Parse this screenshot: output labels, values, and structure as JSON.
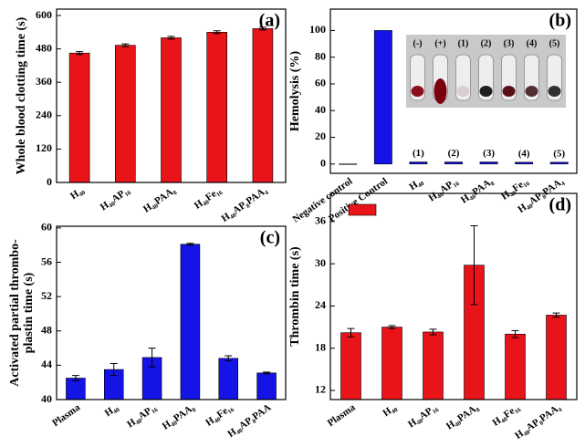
{
  "chart_data": [
    {
      "type": "bar",
      "label": "(a)",
      "ylabel": [
        "Whole blood clotting time (s)"
      ],
      "color": "#e8141a",
      "categories": [
        "H₄₀",
        "H₄₀AP₁₆",
        "H₄₀PAA₈",
        "H₄₀Fe₁₆",
        "H₄₀AP₈PAA₄"
      ],
      "values": [
        465,
        493,
        520,
        540,
        553
      ],
      "errors": [
        5,
        5,
        5,
        5,
        5
      ],
      "ylim": [
        0,
        623
      ],
      "yticks": [
        0,
        120,
        240,
        360,
        480,
        600
      ]
    },
    {
      "type": "bar",
      "label": "(b)",
      "ylabel": [
        "Hemolysis (%)"
      ],
      "color": "#1414e6",
      "categories": [
        "Negative control",
        "Positive Control",
        "H₄₀",
        "H₄₀AP₁₆",
        "H₄₀PAA₈",
        "H₄₀Fe₁₆",
        "H₄₀AP₈PAA₄"
      ],
      "values": [
        0,
        100,
        1.5,
        1.5,
        1.5,
        1.3,
        1.3
      ],
      "bar_annotations": [
        null,
        null,
        "(1)",
        "(2)",
        "(3)",
        "(4)",
        "(5)"
      ],
      "inset_labels": [
        "(-)",
        "(+)",
        "(1)",
        "(2)",
        "(3)",
        "(4)",
        "(5)"
      ],
      "ylim": [
        -7,
        116
      ],
      "yticks": [
        0,
        20,
        40,
        60,
        80,
        100
      ]
    },
    {
      "type": "bar",
      "label": "(c)",
      "ylabel": [
        "Activated partial thrombo-",
        "plastin time (s)"
      ],
      "color": "#1414e6",
      "categories": [
        "Plasma",
        "H₄₀",
        "H₄₀AP₁₆",
        "H₄₀PAA₈",
        "H₄₀Fe₁₆",
        "H₄₀AP₈PAA"
      ],
      "values": [
        42.5,
        43.5,
        44.9,
        58.1,
        44.8,
        43.1
      ],
      "errors": [
        0.3,
        0.7,
        1.1,
        0.1,
        0.3,
        0.1
      ],
      "ylim": [
        40,
        60.2
      ],
      "yticks": [
        40,
        44,
        48,
        52,
        56,
        60
      ]
    },
    {
      "type": "bar",
      "label": "(d)",
      "ylabel": [
        "Thrombin time (s)"
      ],
      "color": "#e8141a",
      "legend": "upper left",
      "categories": [
        "Plasma",
        "H₄₀",
        "H₄₀AP₁₆",
        "H₄₀PAA₈",
        "H₄₀Fe₁₆",
        "H₄₀AP₈PAA₄"
      ],
      "values": [
        20.2,
        21.0,
        20.3,
        29.8,
        20.0,
        22.7
      ],
      "errors": [
        0.6,
        0.2,
        0.4,
        5.6,
        0.5,
        0.3
      ],
      "ylim": [
        10.7,
        40
      ],
      "yticks": [
        12,
        18,
        24,
        30,
        36
      ]
    }
  ]
}
